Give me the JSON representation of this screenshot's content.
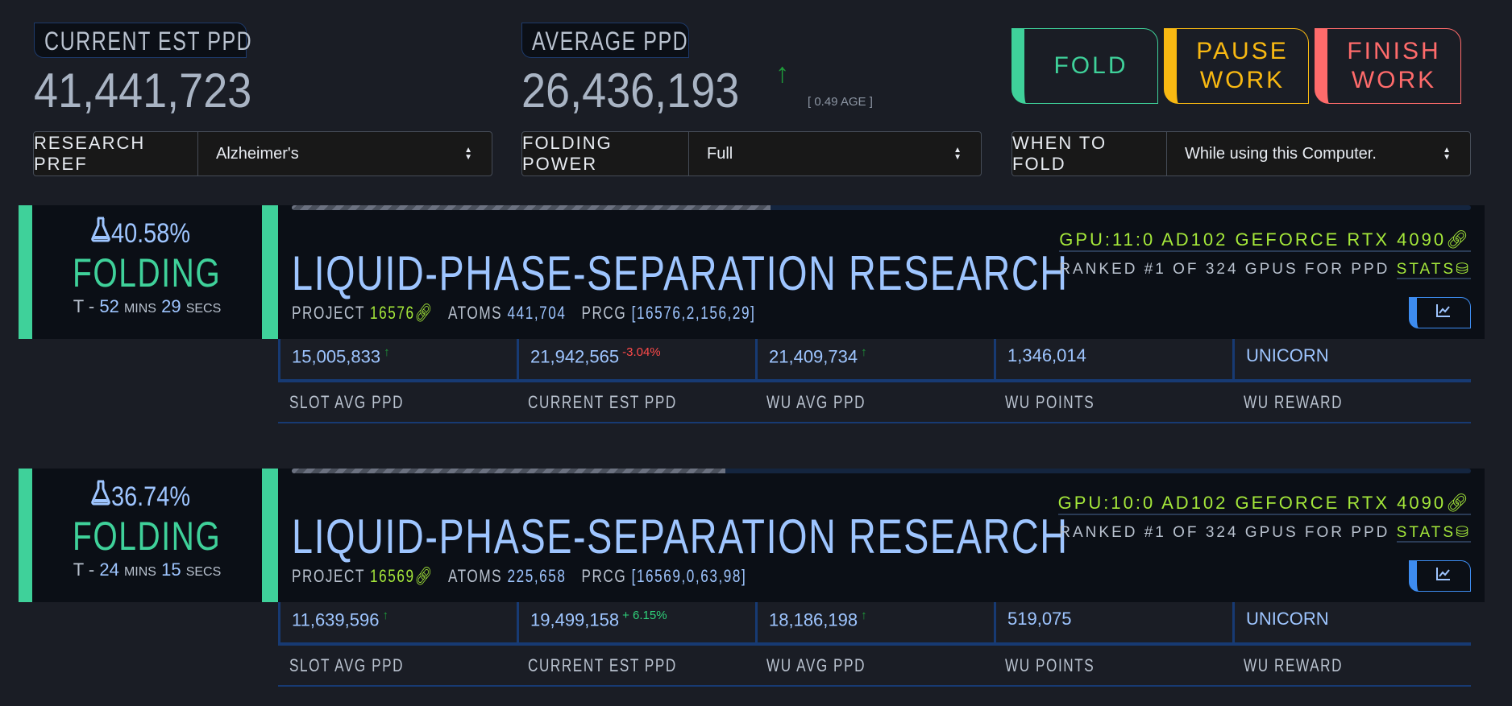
{
  "header": {
    "current": {
      "label": "CURRENT EST PPD",
      "value": "41,441,723"
    },
    "average": {
      "label": "AVERAGE PPD",
      "value": "26,436,193",
      "trend": "↑",
      "age": "[ 0.49 AGE ]"
    }
  },
  "buttons": {
    "fold": "FOLD",
    "pause": [
      "PAUSE",
      "WORK"
    ],
    "finish": [
      "FINISH",
      "WORK"
    ]
  },
  "selects": {
    "research": {
      "label": "RESEARCH PREF",
      "value": "Alzheimer's"
    },
    "power": {
      "label": "FOLDING POWER",
      "value": "Full"
    },
    "when": {
      "label": "WHEN TO FOLD",
      "value": "While using this Computer."
    }
  },
  "colors": {
    "green": "#3fd19a",
    "yellow": "#f9b912",
    "red": "#ff6b6b",
    "blue": "#9ec5ff",
    "lime": "#a5e83a"
  },
  "slots": [
    {
      "percent": "40.58%",
      "progress": 40.58,
      "status": "FOLDING",
      "eta": {
        "prefix": "T -",
        "mins": "52",
        "mins_label": "MINS",
        "secs": "29",
        "secs_label": "SECS"
      },
      "title": "LIQUID-PHASE-SEPARATION RESEARCH",
      "project_label": "PROJECT",
      "project": "16576",
      "atoms_label": "ATOMS",
      "atoms": "441,704",
      "prcg_label": "PRCG",
      "prcg": "[16576,2,156,29]",
      "gpu": "GPU:11:0 AD102 GEFORCE RTX 4090",
      "rank": "RANKED #1 OF 324 GPUS FOR PPD",
      "stats_link": "STATS",
      "stats": [
        {
          "value": "15,005,833",
          "delta": "↑",
          "delta_color": "#1f9a3a"
        },
        {
          "value": "21,942,565",
          "delta": "-3.04%",
          "delta_color": "#ff4a4a"
        },
        {
          "value": "21,409,734",
          "delta": "↑",
          "delta_color": "#1f9a3a"
        },
        {
          "value": "1,346,014",
          "delta": "",
          "delta_color": ""
        },
        {
          "value": "UNICORN",
          "delta": "",
          "delta_color": ""
        }
      ],
      "labels": [
        "SLOT AVG PPD",
        "CURRENT EST PPD",
        "WU AVG PPD",
        "WU POINTS",
        "WU REWARD"
      ]
    },
    {
      "percent": "36.74%",
      "progress": 36.74,
      "status": "FOLDING",
      "eta": {
        "prefix": "T -",
        "mins": "24",
        "mins_label": "MINS",
        "secs": "15",
        "secs_label": "SECS"
      },
      "title": "LIQUID-PHASE-SEPARATION RESEARCH",
      "project_label": "PROJECT",
      "project": "16569",
      "atoms_label": "ATOMS",
      "atoms": "225,658",
      "prcg_label": "PRCG",
      "prcg": "[16569,0,63,98]",
      "gpu": "GPU:10:0 AD102 GEFORCE RTX 4090",
      "rank": "RANKED #1 OF 324 GPUS FOR PPD",
      "stats_link": "STATS",
      "stats": [
        {
          "value": "11,639,596",
          "delta": "↑",
          "delta_color": "#1f9a3a"
        },
        {
          "value": "19,499,158",
          "delta": "+ 6.15%",
          "delta_color": "#2fd17a"
        },
        {
          "value": "18,186,198",
          "delta": "↑",
          "delta_color": "#1f9a3a"
        },
        {
          "value": "519,075",
          "delta": "",
          "delta_color": ""
        },
        {
          "value": "UNICORN",
          "delta": "",
          "delta_color": ""
        }
      ],
      "labels": [
        "SLOT AVG PPD",
        "CURRENT EST PPD",
        "WU AVG PPD",
        "WU POINTS",
        "WU REWARD"
      ]
    }
  ]
}
